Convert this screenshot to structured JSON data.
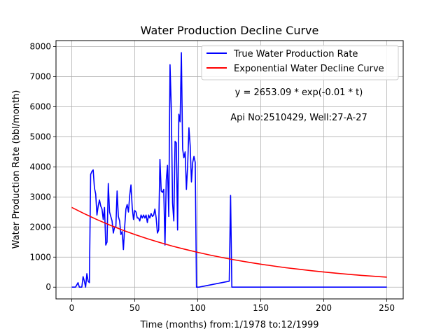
{
  "chart_data": {
    "type": "line",
    "title": "Water Production Decline Curve",
    "xlabel": "Time (months) from:1/1978 to:12/1999",
    "ylabel": "Water Production Rate (bbl/month)",
    "xlim": [
      -12.5,
      263
    ],
    "ylim": [
      -390,
      8200
    ],
    "xticks": [
      0,
      50,
      100,
      150,
      200,
      250
    ],
    "yticks": [
      0,
      1000,
      2000,
      3000,
      4000,
      5000,
      6000,
      7000,
      8000
    ],
    "grid": true,
    "legend_position": "top-right",
    "annotations": [
      "y = 2653.09 * exp(-0.01 * t)",
      "Api No:2510429, Well:27-A-27"
    ],
    "series": [
      {
        "name": "True Water Production Rate",
        "color": "#0000ff",
        "x": [
          0,
          3,
          5,
          6,
          7,
          8,
          9,
          10,
          11,
          12,
          13,
          14,
          15,
          16,
          17,
          18,
          19,
          20,
          21,
          22,
          23,
          24,
          25,
          26,
          27,
          28,
          29,
          30,
          31,
          32,
          33,
          34,
          35,
          36,
          37,
          38,
          39,
          40,
          41,
          42,
          43,
          44,
          45,
          46,
          47,
          48,
          49,
          50,
          51,
          52,
          53,
          54,
          55,
          56,
          57,
          58,
          59,
          60,
          61,
          62,
          63,
          64,
          65,
          66,
          67,
          68,
          69,
          70,
          71,
          72,
          73,
          74,
          75,
          76,
          77,
          78,
          79,
          80,
          81,
          82,
          83,
          84,
          85,
          86,
          87,
          88,
          89,
          90,
          91,
          92,
          93,
          94,
          95,
          96,
          97,
          98,
          99,
          100,
          101,
          125,
          126,
          127,
          128,
          250
        ],
        "y": [
          0,
          0,
          150,
          0,
          0,
          0,
          350,
          200,
          0,
          450,
          200,
          150,
          3750,
          3850,
          3900,
          3300,
          3100,
          2400,
          2700,
          2900,
          2700,
          2600,
          2250,
          2650,
          1400,
          1500,
          3450,
          2500,
          2350,
          2200,
          1800,
          2000,
          2000,
          3200,
          2350,
          2200,
          1750,
          1850,
          1250,
          2000,
          2600,
          2750,
          2500,
          3050,
          3400,
          2650,
          2250,
          2550,
          2500,
          2300,
          2300,
          2200,
          2400,
          2300,
          2400,
          2300,
          2400,
          2150,
          2400,
          2300,
          2450,
          2350,
          2400,
          2600,
          2300,
          1800,
          1900,
          4250,
          3200,
          3150,
          3250,
          1400,
          3550,
          4050,
          2350,
          7400,
          5950,
          2800,
          2200,
          4850,
          4800,
          1900,
          5750,
          5500,
          7800,
          4600,
          4300,
          4500,
          3250,
          4050,
          5300,
          4700,
          3500,
          4150,
          4350,
          4150,
          0,
          0,
          0,
          200,
          3050,
          0,
          0,
          0
        ]
      },
      {
        "name": "Exponential Water Decline Curve",
        "color": "#ff0000",
        "function": "y = 2653.09 * exp(-0.00831 * t)",
        "x": [
          0,
          10,
          20,
          30,
          40,
          50,
          60,
          70,
          80,
          90,
          100,
          110,
          120,
          130,
          140,
          150,
          160,
          170,
          180,
          190,
          200,
          210,
          220,
          230,
          240,
          250
        ],
        "y": [
          2653,
          2442,
          2248,
          2069,
          1904,
          1752,
          1612,
          1484,
          1366,
          1257,
          1157,
          1065,
          980,
          902,
          830,
          764,
          703,
          647,
          596,
          548,
          505,
          464,
          428,
          393,
          362,
          333
        ]
      }
    ]
  }
}
